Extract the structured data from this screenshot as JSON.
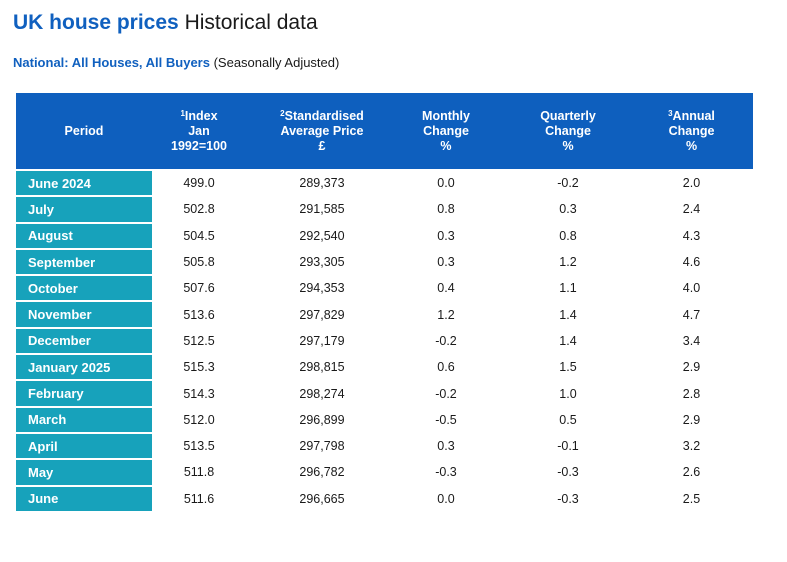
{
  "title": {
    "strong": "UK house prices",
    "rest": "Historical data"
  },
  "subtitle": {
    "strong": "National: All Houses, All Buyers",
    "rest": "(Seasonally Adjusted)"
  },
  "colors": {
    "header_bg": "#0e5fbe",
    "period_bg": "#17a2bb",
    "title_blue": "#1060bf"
  },
  "table": {
    "headers": {
      "period": "Period",
      "index": {
        "sup": "1",
        "line1": "Index",
        "line2": "Jan",
        "line3": "1992=100"
      },
      "price": {
        "sup": "2",
        "line1": "Standardised",
        "line2": "Average Price",
        "line3": "£"
      },
      "monthly": {
        "line1": "Monthly",
        "line2": "Change",
        "line3": "%"
      },
      "quarterly": {
        "line1": "Quarterly",
        "line2": "Change",
        "line3": "%"
      },
      "annual": {
        "sup": "3",
        "line1": "Annual",
        "line2": "Change",
        "line3": "%"
      }
    },
    "rows": [
      {
        "period": "June 2024",
        "index": "499.0",
        "price": "289,373",
        "monthly": "0.0",
        "quarterly": "-0.2",
        "annual": "2.0"
      },
      {
        "period": "July",
        "index": "502.8",
        "price": "291,585",
        "monthly": "0.8",
        "quarterly": "0.3",
        "annual": "2.4"
      },
      {
        "period": "August",
        "index": "504.5",
        "price": "292,540",
        "monthly": "0.3",
        "quarterly": "0.8",
        "annual": "4.3"
      },
      {
        "period": "September",
        "index": "505.8",
        "price": "293,305",
        "monthly": "0.3",
        "quarterly": "1.2",
        "annual": "4.6"
      },
      {
        "period": "October",
        "index": "507.6",
        "price": "294,353",
        "monthly": "0.4",
        "quarterly": "1.1",
        "annual": "4.0"
      },
      {
        "period": "November",
        "index": "513.6",
        "price": "297,829",
        "monthly": "1.2",
        "quarterly": "1.4",
        "annual": "4.7"
      },
      {
        "period": "December",
        "index": "512.5",
        "price": "297,179",
        "monthly": "-0.2",
        "quarterly": "1.4",
        "annual": "3.4"
      },
      {
        "period": "January 2025",
        "index": "515.3",
        "price": "298,815",
        "monthly": "0.6",
        "quarterly": "1.5",
        "annual": "2.9"
      },
      {
        "period": "February",
        "index": "514.3",
        "price": "298,274",
        "monthly": "-0.2",
        "quarterly": "1.0",
        "annual": "2.8"
      },
      {
        "period": "March",
        "index": "512.0",
        "price": "296,899",
        "monthly": "-0.5",
        "quarterly": "0.5",
        "annual": "2.9"
      },
      {
        "period": "April",
        "index": "513.5",
        "price": "297,798",
        "monthly": "0.3",
        "quarterly": "-0.1",
        "annual": "3.2"
      },
      {
        "period": "May",
        "index": "511.8",
        "price": "296,782",
        "monthly": "-0.3",
        "quarterly": "-0.3",
        "annual": "2.6"
      },
      {
        "period": "June",
        "index": "511.6",
        "price": "296,665",
        "monthly": "0.0",
        "quarterly": "-0.3",
        "annual": "2.5"
      }
    ]
  }
}
